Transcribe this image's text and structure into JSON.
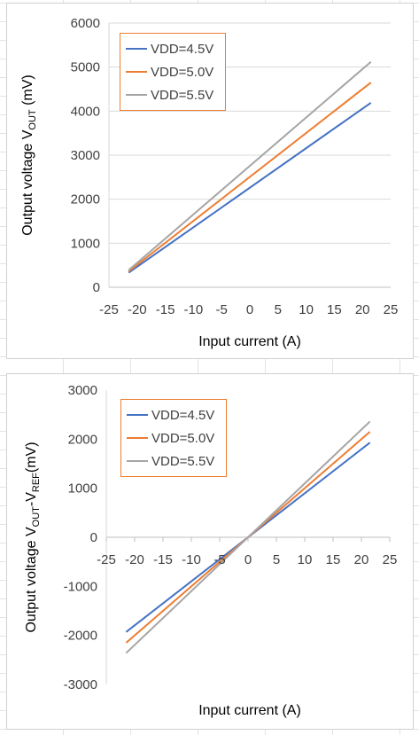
{
  "chart_data": [
    {
      "type": "line",
      "xlabel": "Input current (A)",
      "ylabel_parts": [
        "Output voltage V",
        "OUT",
        " (mV)"
      ],
      "xlim": [
        -25,
        25
      ],
      "ylim": [
        0,
        6000
      ],
      "xticks": [
        -25,
        -20,
        -15,
        -10,
        -5,
        0,
        5,
        10,
        15,
        20,
        25
      ],
      "yticks": [
        0,
        1000,
        2000,
        3000,
        4000,
        5000,
        6000
      ],
      "grid": "horizontal",
      "legend_position": "top-left",
      "series": [
        {
          "name": "VDD=4.5V",
          "color": "#4472C4",
          "x": [
            -21.5,
            21.5
          ],
          "y": [
            330,
            4190
          ]
        },
        {
          "name": "VDD=5.0V",
          "color": "#ED7D31",
          "x": [
            -21.5,
            21.5
          ],
          "y": [
            360,
            4650
          ]
        },
        {
          "name": "VDD=5.5V",
          "color": "#A5A5A5",
          "x": [
            -21.5,
            21.5
          ],
          "y": [
            390,
            5120
          ]
        }
      ]
    },
    {
      "type": "line",
      "xlabel": "Input current (A)",
      "ylabel_parts": [
        "Output voltage V",
        "OUT",
        "-V",
        "REF",
        "(mV)"
      ],
      "xlim": [
        -25,
        25
      ],
      "ylim": [
        -3000,
        3000
      ],
      "xticks": [
        -25,
        -20,
        -15,
        -10,
        -5,
        0,
        5,
        10,
        15,
        20,
        25
      ],
      "yticks": [
        -3000,
        -2000,
        -1000,
        0,
        1000,
        2000,
        3000
      ],
      "grid": "none",
      "legend_position": "top-left",
      "series": [
        {
          "name": "VDD=4.5V",
          "color": "#4472C4",
          "x": [
            -21.5,
            21.5
          ],
          "y": [
            -1930,
            1930
          ]
        },
        {
          "name": "VDD=5.0V",
          "color": "#ED7D31",
          "x": [
            -21.5,
            21.5
          ],
          "y": [
            -2150,
            2150
          ]
        },
        {
          "name": "VDD=5.5V",
          "color": "#A5A5A5",
          "x": [
            -21.5,
            21.5
          ],
          "y": [
            -2360,
            2360
          ]
        }
      ]
    }
  ]
}
